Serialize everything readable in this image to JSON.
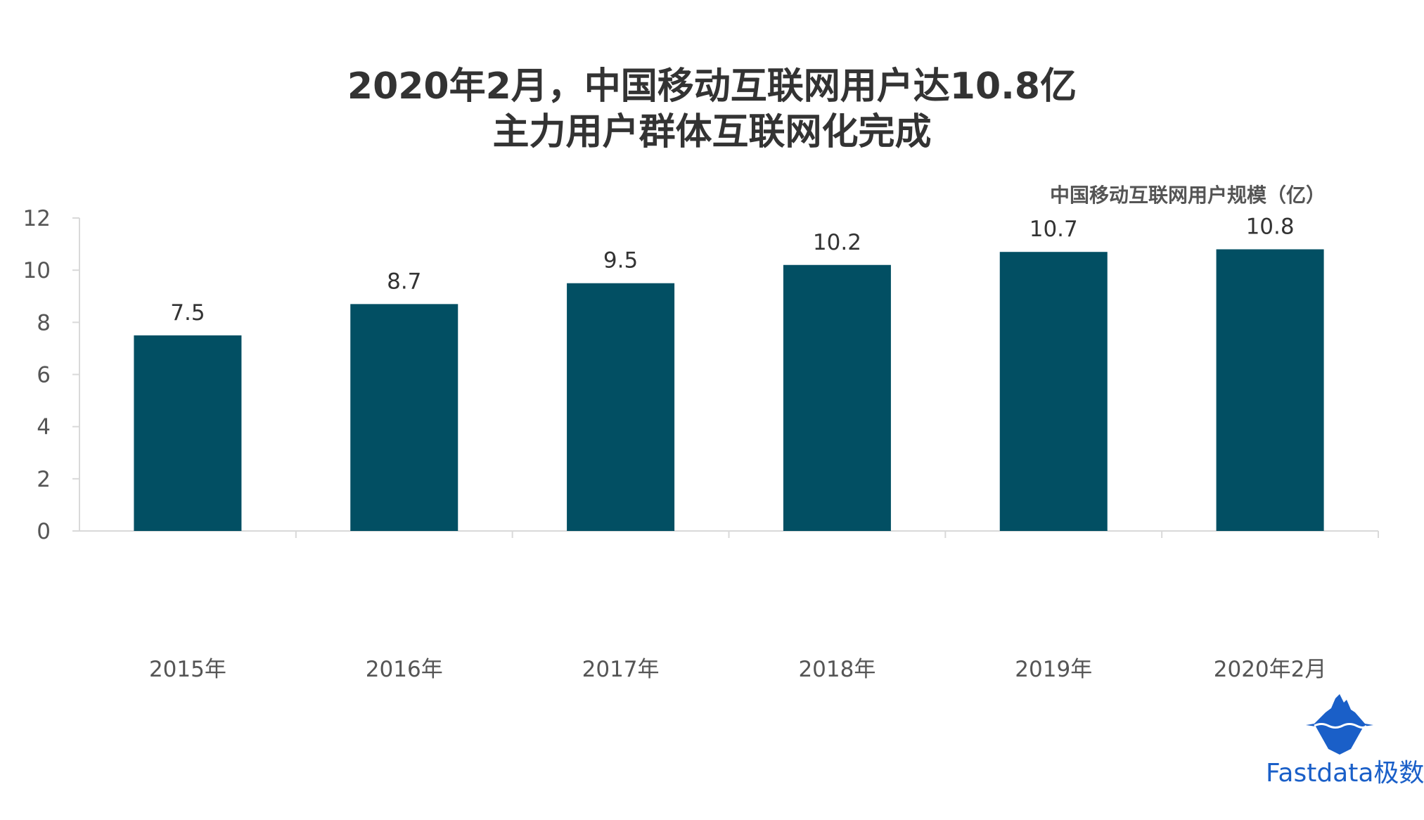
{
  "title_line1": "2020年2月，中国移动互联网用户达10.8亿",
  "title_line2": "主力用户群体互联网化完成",
  "logo_text": "Fastdata极数",
  "chart_data": {
    "type": "bar",
    "title": "2020年2月，中国移动互联网用户达10.8亿 主力用户群体互联网化完成",
    "series_label": "中国移动互联网用户规模（亿）",
    "categories": [
      "2015年",
      "2016年",
      "2017年",
      "2018年",
      "2019年",
      "2020年2月"
    ],
    "values": [
      7.5,
      8.7,
      9.5,
      10.2,
      10.7,
      10.8
    ],
    "data_labels": [
      "7.5",
      "8.7",
      "9.5",
      "10.2",
      "10.7",
      "10.8"
    ],
    "yticks": [
      0,
      2,
      4,
      6,
      8,
      10,
      12
    ],
    "ylim": [
      0,
      12
    ],
    "xlabel": "",
    "ylabel": "",
    "grid": false,
    "bar_color": "#024f63"
  }
}
